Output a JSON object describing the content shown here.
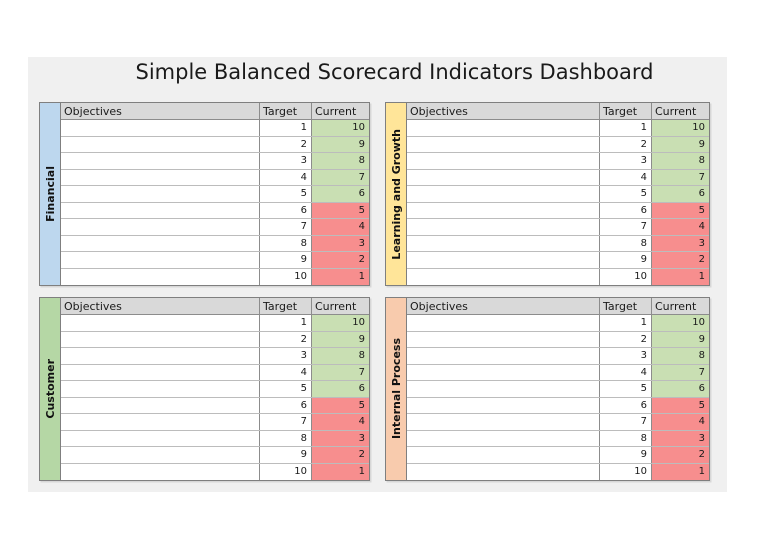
{
  "title": "Simple Balanced Scorecard Indicators Dashboard",
  "columns": {
    "objectives": "Objectives",
    "target": "Target",
    "current": "Current"
  },
  "colors": {
    "page_bg": "#ffffff",
    "panel_bg": "#f0f0f0",
    "header_bg": "#d9d9d9",
    "good_current_bg": "#c9dfb3",
    "bad_current_bg": "#f78e8e",
    "financial_sidebar": "#bdd7ee",
    "learning_and_growth_sidebar": "#ffe599",
    "customer_sidebar": "#b5d7a5",
    "internal_process_sidebar": "#f8cbad"
  },
  "quadrants": [
    {
      "id": "financial",
      "label": "Financial",
      "color": "#bdd7ee",
      "rows": [
        {
          "objective": "",
          "target": "1",
          "current": "10",
          "status": "good"
        },
        {
          "objective": "",
          "target": "2",
          "current": "9",
          "status": "good"
        },
        {
          "objective": "",
          "target": "3",
          "current": "8",
          "status": "good"
        },
        {
          "objective": "",
          "target": "4",
          "current": "7",
          "status": "good"
        },
        {
          "objective": "",
          "target": "5",
          "current": "6",
          "status": "good"
        },
        {
          "objective": "",
          "target": "6",
          "current": "5",
          "status": "bad"
        },
        {
          "objective": "",
          "target": "7",
          "current": "4",
          "status": "bad"
        },
        {
          "objective": "",
          "target": "8",
          "current": "3",
          "status": "bad"
        },
        {
          "objective": "",
          "target": "9",
          "current": "2",
          "status": "bad"
        },
        {
          "objective": "",
          "target": "10",
          "current": "1",
          "status": "bad"
        }
      ]
    },
    {
      "id": "learning-and-growth",
      "label": "Learning and Growth",
      "color": "#ffe599",
      "rows": [
        {
          "objective": "",
          "target": "1",
          "current": "10",
          "status": "good"
        },
        {
          "objective": "",
          "target": "2",
          "current": "9",
          "status": "good"
        },
        {
          "objective": "",
          "target": "3",
          "current": "8",
          "status": "good"
        },
        {
          "objective": "",
          "target": "4",
          "current": "7",
          "status": "good"
        },
        {
          "objective": "",
          "target": "5",
          "current": "6",
          "status": "good"
        },
        {
          "objective": "",
          "target": "6",
          "current": "5",
          "status": "bad"
        },
        {
          "objective": "",
          "target": "7",
          "current": "4",
          "status": "bad"
        },
        {
          "objective": "",
          "target": "8",
          "current": "3",
          "status": "bad"
        },
        {
          "objective": "",
          "target": "9",
          "current": "2",
          "status": "bad"
        },
        {
          "objective": "",
          "target": "10",
          "current": "1",
          "status": "bad"
        }
      ]
    },
    {
      "id": "customer",
      "label": "Customer",
      "color": "#b5d7a5",
      "rows": [
        {
          "objective": "",
          "target": "1",
          "current": "10",
          "status": "good"
        },
        {
          "objective": "",
          "target": "2",
          "current": "9",
          "status": "good"
        },
        {
          "objective": "",
          "target": "3",
          "current": "8",
          "status": "good"
        },
        {
          "objective": "",
          "target": "4",
          "current": "7",
          "status": "good"
        },
        {
          "objective": "",
          "target": "5",
          "current": "6",
          "status": "good"
        },
        {
          "objective": "",
          "target": "6",
          "current": "5",
          "status": "bad"
        },
        {
          "objective": "",
          "target": "7",
          "current": "4",
          "status": "bad"
        },
        {
          "objective": "",
          "target": "8",
          "current": "3",
          "status": "bad"
        },
        {
          "objective": "",
          "target": "9",
          "current": "2",
          "status": "bad"
        },
        {
          "objective": "",
          "target": "10",
          "current": "1",
          "status": "bad"
        }
      ]
    },
    {
      "id": "internal-process",
      "label": "Internal Process",
      "color": "#f8cbad",
      "rows": [
        {
          "objective": "",
          "target": "1",
          "current": "10",
          "status": "good"
        },
        {
          "objective": "",
          "target": "2",
          "current": "9",
          "status": "good"
        },
        {
          "objective": "",
          "target": "3",
          "current": "8",
          "status": "good"
        },
        {
          "objective": "",
          "target": "4",
          "current": "7",
          "status": "good"
        },
        {
          "objective": "",
          "target": "5",
          "current": "6",
          "status": "good"
        },
        {
          "objective": "",
          "target": "6",
          "current": "5",
          "status": "bad"
        },
        {
          "objective": "",
          "target": "7",
          "current": "4",
          "status": "bad"
        },
        {
          "objective": "",
          "target": "8",
          "current": "3",
          "status": "bad"
        },
        {
          "objective": "",
          "target": "9",
          "current": "2",
          "status": "bad"
        },
        {
          "objective": "",
          "target": "10",
          "current": "1",
          "status": "bad"
        }
      ]
    }
  ],
  "chart_data": {
    "type": "table",
    "title": "Simple Balanced Scorecard Indicators Dashboard",
    "perspectives": [
      "Financial",
      "Learning and Growth",
      "Customer",
      "Internal Process"
    ],
    "columns": [
      "Objectives",
      "Target",
      "Current"
    ],
    "per_perspective_values": {
      "objectives": [
        "",
        "",
        "",
        "",
        "",
        "",
        "",
        "",
        "",
        ""
      ],
      "target": [
        1,
        2,
        3,
        4,
        5,
        6,
        7,
        8,
        9,
        10
      ],
      "current": [
        10,
        9,
        8,
        7,
        6,
        5,
        4,
        3,
        2,
        1
      ]
    },
    "layout": "2x2 grid: Financial top-left, Learning and Growth top-right, Customer bottom-left, Internal Process bottom-right",
    "color_rule": "Current cell green (#c9dfb3) when current >= 6, red (#f78e8e) when current <= 5"
  }
}
